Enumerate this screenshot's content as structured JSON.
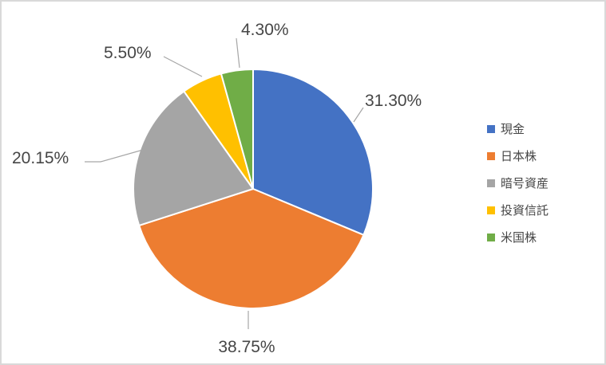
{
  "chart_data": {
    "type": "pie",
    "title": "",
    "categories": [
      "現金",
      "日本株",
      "暗号資産",
      "投資信託",
      "米国株"
    ],
    "values": [
      31.3,
      38.75,
      20.15,
      5.5,
      4.3
    ],
    "data_labels": [
      "31.30%",
      "38.75%",
      "20.15%",
      "5.50%",
      "4.30%"
    ],
    "colors": [
      "#4472C4",
      "#ED7D31",
      "#A5A5A5",
      "#FFC000",
      "#70AD47"
    ],
    "legend": {
      "position": "right",
      "entries": [
        "現金",
        "日本株",
        "暗号資産",
        "投資信託",
        "米国株"
      ]
    },
    "styles": {
      "background": "#FFFFFF",
      "frame_border": "#D9D9D9",
      "text_color": "#464646",
      "leader_line_color": "#A6A6A6",
      "slice_separator": "#FFFFFF"
    },
    "start_angle_deg": 0,
    "direction": "clockwise",
    "grid": false
  }
}
